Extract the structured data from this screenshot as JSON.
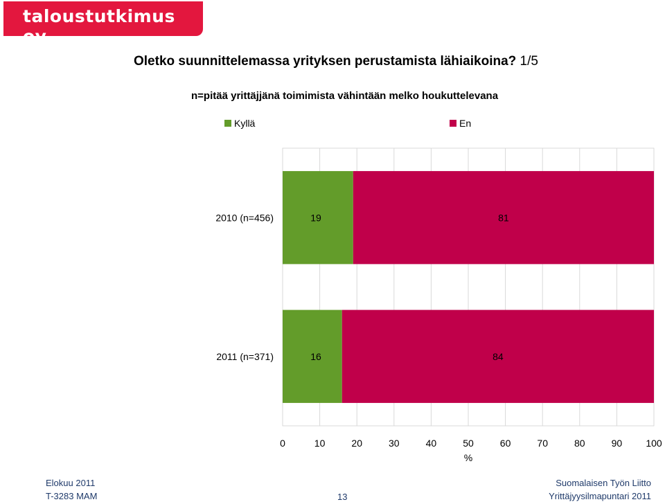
{
  "logo": {
    "text": "taloustutkimus oy",
    "color": "#e3173e"
  },
  "header": {
    "title": "Oletko suunnittelemassa yrityksen perustamista lähiaikoina?",
    "page_indicator": "1/5",
    "subtitle": "n=pitää yrittäjjänä toimimista vähintään melko houkuttelevana"
  },
  "chart_data": {
    "type": "bar",
    "orientation": "horizontal",
    "stacked": true,
    "categories": [
      "2010 (n=456)",
      "2011 (n=371)"
    ],
    "series": [
      {
        "name": "Kyllä",
        "color": "#639c2a",
        "values": [
          19,
          16
        ]
      },
      {
        "name": "En",
        "color": "#c0004a",
        "values": [
          81,
          84
        ]
      }
    ],
    "xlabel": "%",
    "xlim": [
      0,
      100
    ],
    "xticks": [
      0,
      10,
      20,
      30,
      40,
      50,
      60,
      70,
      80,
      90,
      100
    ],
    "grid": true,
    "legend": "top",
    "data_labels": true
  },
  "footer": {
    "left_line1": "Elokuu 2011",
    "left_line2": "T-3283 MAM",
    "page_number": "13",
    "right_line1": "Suomalaisen Työn Liitto",
    "right_line2": "Yrittäjyysilmapuntari 2011"
  }
}
